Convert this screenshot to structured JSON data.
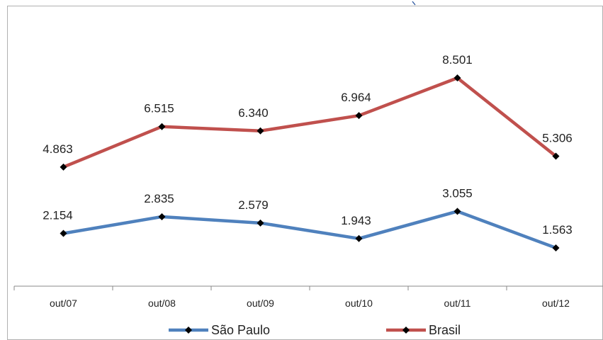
{
  "chart_data": {
    "type": "line",
    "categories": [
      "out/07",
      "out/08",
      "out/09",
      "out/10",
      "out/11",
      "out/12"
    ],
    "series": [
      {
        "name": "São Paulo",
        "values": [
          2154,
          2835,
          2579,
          1943,
          3055,
          1563
        ],
        "labels": [
          "2.154",
          "2.835",
          "2.579",
          "1.943",
          "3.055",
          "1.563"
        ],
        "color": "#4f81bd"
      },
      {
        "name": "Brasil",
        "values": [
          4863,
          6515,
          6340,
          6964,
          8501,
          5306
        ],
        "labels": [
          "4.863",
          "6.515",
          "6.340",
          "6.964",
          "8.501",
          "5.306"
        ],
        "color": "#c0504d"
      }
    ],
    "ylim": [
      0,
      9500
    ],
    "grid": false,
    "legend": "bottom",
    "axis_color": "#888888",
    "marker_color": "#000000"
  }
}
